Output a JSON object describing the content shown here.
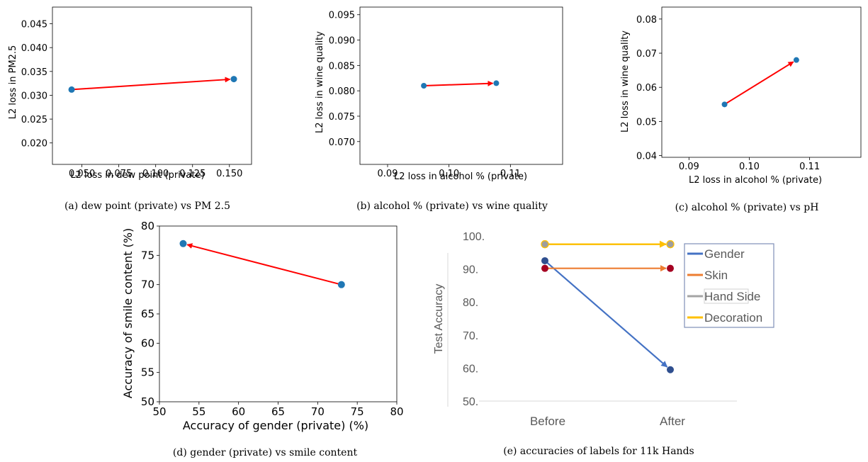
{
  "colors": {
    "point": "#1f77b4",
    "arrow": "#ff0000",
    "gender": "#4472c4",
    "skin": "#ed7d31",
    "hand_side": "#a5a5a5",
    "decoration": "#ffc000",
    "point_dark_blue": "#2f4f8f",
    "point_dark_red": "#a50021",
    "point_gray_fill": "#9e9e9e"
  },
  "chart_data": [
    {
      "id": "a",
      "type": "scatter",
      "caption": "(a) dew point (private) vs PM 2.5",
      "xlabel": "L2 loss in dew point (private)",
      "ylabel": "L2 loss in PM2.5",
      "xlim": [
        0.03,
        0.165
      ],
      "ylim": [
        0.0155,
        0.0485
      ],
      "xticks": [
        0.05,
        0.075,
        0.1,
        0.125,
        0.15
      ],
      "xtick_labels": [
        "0.050",
        "0.075",
        "0.100",
        "0.125",
        "0.150"
      ],
      "yticks": [
        0.02,
        0.025,
        0.03,
        0.035,
        0.04,
        0.045
      ],
      "ytick_labels": [
        "0.020",
        "0.025",
        "0.030",
        "0.035",
        "0.040",
        "0.045"
      ],
      "points": [
        {
          "x": 0.043,
          "y": 0.0312
        },
        {
          "x": 0.153,
          "y": 0.0334
        }
      ],
      "arrow": {
        "from": 0,
        "to": 1
      }
    },
    {
      "id": "b",
      "type": "scatter",
      "caption": "(b) alcohol % (private) vs wine quality",
      "xlabel": "L2 loss in alcohol % (private)",
      "ylabel": "L2 loss in wine quality",
      "xlim": [
        0.0855,
        0.1185
      ],
      "ylim": [
        0.0655,
        0.0965
      ],
      "xticks": [
        0.09,
        0.1,
        0.11
      ],
      "xtick_labels": [
        "0.09",
        "0.10",
        "0.11"
      ],
      "yticks": [
        0.07,
        0.075,
        0.08,
        0.085,
        0.09,
        0.095
      ],
      "ytick_labels": [
        "0.070",
        "0.075",
        "0.080",
        "0.085",
        "0.090",
        "0.095"
      ],
      "points": [
        {
          "x": 0.0959,
          "y": 0.081
        },
        {
          "x": 0.1077,
          "y": 0.0815
        }
      ],
      "arrow": {
        "from": 0,
        "to": 1
      }
    },
    {
      "id": "c",
      "type": "scatter",
      "caption": "(c) alcohol % (private) vs pH",
      "xlabel": "L2 loss in alcohol % (private)",
      "ylabel": "L2 loss in wine quality",
      "xlim": [
        0.0855,
        0.1185
      ],
      "ylim": [
        0.0395,
        0.0835
      ],
      "xticks": [
        0.09,
        0.1,
        0.11
      ],
      "xtick_labels": [
        "0.09",
        "0.10",
        "0.11"
      ],
      "yticks": [
        0.04,
        0.05,
        0.06,
        0.07,
        0.08
      ],
      "ytick_labels": [
        "0.04",
        "0.05",
        "0.06",
        "0.07",
        "0.08"
      ],
      "points": [
        {
          "x": 0.0959,
          "y": 0.055
        },
        {
          "x": 0.1078,
          "y": 0.068
        }
      ],
      "arrow": {
        "from": 0,
        "to": 1
      }
    },
    {
      "id": "d",
      "type": "scatter",
      "caption": "(d) gender (private) vs smile content",
      "xlabel": "Accuracy of gender (private) (%)",
      "ylabel": "Accuracy of smile content (%)",
      "xlim": [
        50,
        80
      ],
      "ylim": [
        50,
        80
      ],
      "xticks": [
        50,
        55,
        60,
        65,
        70,
        75,
        80
      ],
      "xtick_labels": [
        "50",
        "55",
        "60",
        "65",
        "70",
        "75",
        "80"
      ],
      "yticks": [
        50,
        55,
        60,
        65,
        70,
        75,
        80
      ],
      "ytick_labels": [
        "50",
        "55",
        "60",
        "65",
        "70",
        "75",
        "80"
      ],
      "points": [
        {
          "x": 73,
          "y": 70
        },
        {
          "x": 53,
          "y": 77
        }
      ],
      "arrow": {
        "from": 0,
        "to": 1
      }
    },
    {
      "id": "e",
      "type": "line",
      "caption": "(e) accuracies of labels for 11k Hands",
      "ylabel": "Test Accuracy",
      "categories": [
        "Before",
        "After"
      ],
      "yticks": [
        50,
        60,
        70,
        80,
        90,
        100
      ],
      "ytick_labels": [
        "50.",
        "60.",
        "70.",
        "80.",
        "90.",
        "100."
      ],
      "ylim": [
        50,
        100
      ],
      "series": [
        {
          "name": "Gender",
          "values": [
            92.5,
            59.5
          ]
        },
        {
          "name": "Skin",
          "values": [
            90.2,
            90.2
          ]
        },
        {
          "name": "Hand Side",
          "values": [
            97.5,
            97.5
          ]
        },
        {
          "name": "Decoration",
          "values": [
            97.5,
            97.5
          ]
        }
      ],
      "legend": "right"
    }
  ]
}
